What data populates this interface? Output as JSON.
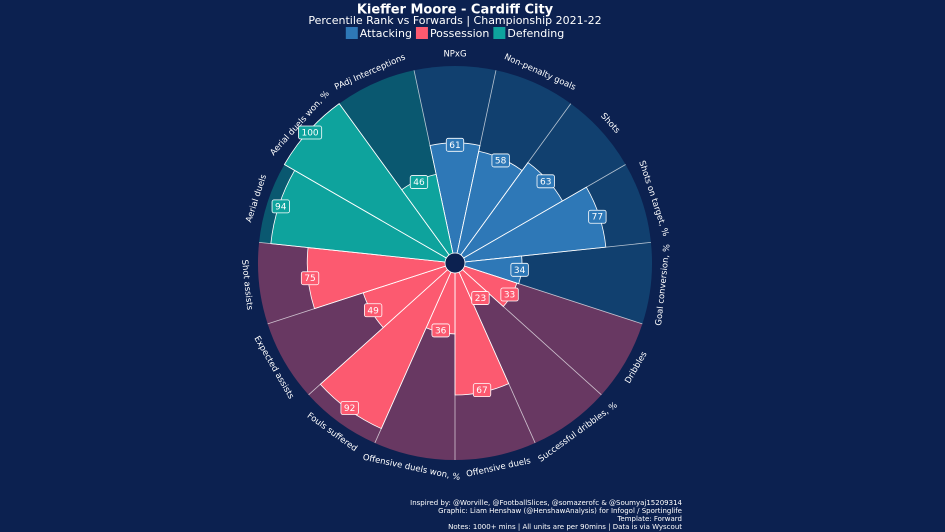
{
  "chart_data": {
    "type": "pizza",
    "title": "Kieffer Moore - Cardiff City",
    "subtitle": "Percentile Rank vs Forwards | Championship 2021-22",
    "categories": [
      "NPxG",
      "Non-penalty goals",
      "Shots",
      "Shots on target, %",
      "Goal conversion, %",
      "Dribbles",
      "Successful dribbles, %",
      "Offensive duels",
      "Offensive duels won, %",
      "Fouls suffered",
      "Expected assists",
      "Shot assists",
      "Aerial duels",
      "Aerial duels won, %",
      "PAdj Interceptions"
    ],
    "series": [
      {
        "name": "Attacking",
        "color": "#2e78b7",
        "bg_color": "#11406f",
        "values": [
          61,
          58,
          63,
          77,
          34,
          null,
          null,
          null,
          null,
          null,
          null,
          null,
          null,
          null,
          null
        ]
      },
      {
        "name": "Possession",
        "color": "#fc5a70",
        "bg_color": "#683862",
        "values": [
          null,
          null,
          null,
          null,
          null,
          33,
          23,
          67,
          36,
          92,
          49,
          75,
          null,
          null,
          null
        ]
      },
      {
        "name": "Defending",
        "color": "#0ea39d",
        "bg_color": "#0a5870",
        "values": [
          null,
          null,
          null,
          null,
          null,
          null,
          null,
          null,
          null,
          null,
          null,
          null,
          94,
          100,
          46
        ]
      }
    ],
    "ylim": [
      0,
      100
    ],
    "notes": [
      "Inspired by: @Worville, @FootballSlices, @somazerofc & @Soumyaj15209314",
      "Graphic: Liam Henshaw (@HenshawAnalysis) for Infogol / Sportinglife",
      "Template: Forward",
      "Notes: 1000+ mins | All units are per 90mins | Data is via Wyscout"
    ]
  }
}
